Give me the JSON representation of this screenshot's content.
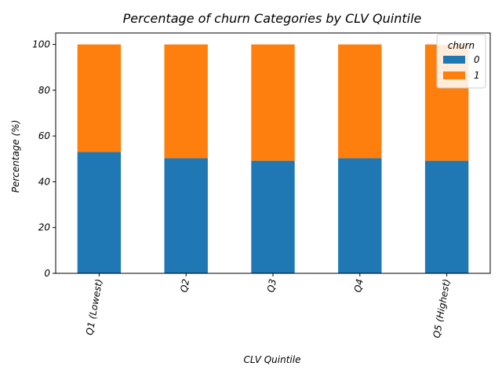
{
  "chart_data": {
    "type": "bar",
    "stacked": true,
    "title": "Percentage of churn Categories by CLV Quintile",
    "xlabel": "CLV Quintile",
    "ylabel": "Percentage (%)",
    "ylim": [
      0,
      105
    ],
    "yticks": [
      "0",
      "20",
      "40",
      "60",
      "80",
      "100"
    ],
    "categories": [
      "Q1 (Lowest)",
      "Q2",
      "Q3",
      "Q4",
      "Q5 (Highest)"
    ],
    "series": [
      {
        "name": "0",
        "color": "#1f77b4",
        "values": [
          53.0,
          50.3,
          49.2,
          50.3,
          49.2
        ]
      },
      {
        "name": "1",
        "color": "#ff7f0e",
        "values": [
          47.0,
          49.7,
          50.8,
          49.7,
          50.8
        ]
      }
    ],
    "legend": {
      "title": "churn",
      "position": "top-right"
    }
  }
}
